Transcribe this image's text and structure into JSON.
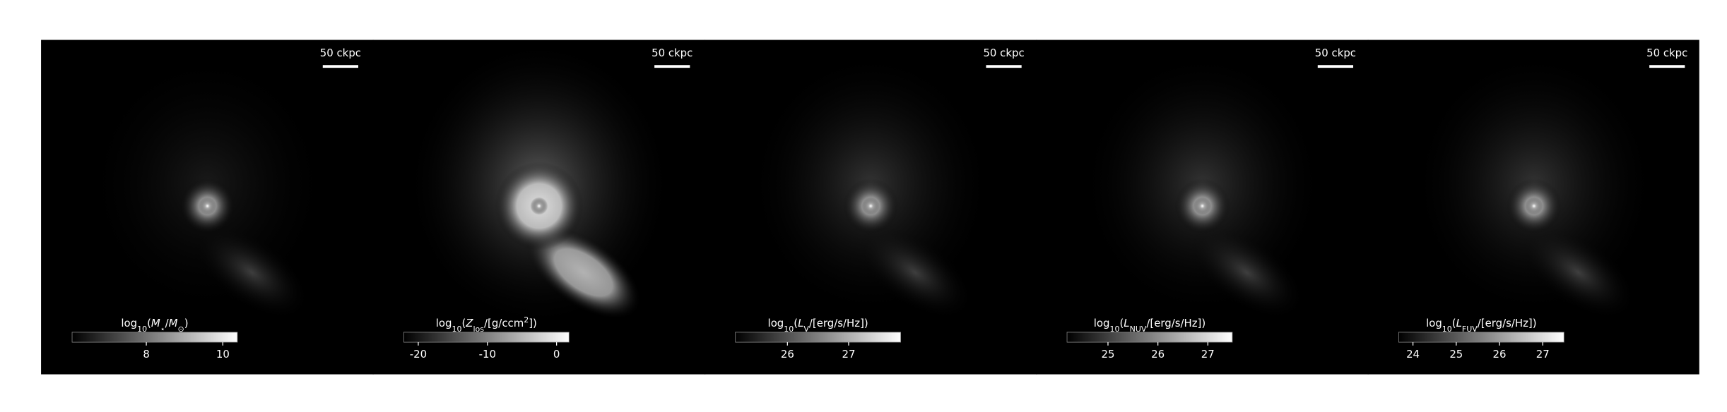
{
  "panels": [
    {
      "scale_bar": "50 ckpc",
      "colorbar": {
        "label": [
          {
            "text": "log"
          },
          {
            "text": "10",
            "style": "sub"
          },
          {
            "text": "("
          },
          {
            "text": "M",
            "style": "italic"
          },
          {
            "text": "⋆",
            "style": "sub"
          },
          {
            "text": "/"
          },
          {
            "text": "M",
            "style": "italic"
          },
          {
            "text": "⊙",
            "style": "sub"
          },
          {
            "text": ")"
          }
        ],
        "lim": [
          6.06,
          10.38
        ],
        "ticks": [
          8,
          10
        ]
      }
    },
    {
      "scale_bar": "50 ckpc",
      "colorbar": {
        "label": [
          {
            "text": "log"
          },
          {
            "text": "10",
            "style": "sub"
          },
          {
            "text": "("
          },
          {
            "text": "Z",
            "style": "italic"
          },
          {
            "text": "los",
            "style": "sub"
          },
          {
            "text": "/[g/ccm"
          },
          {
            "text": "2",
            "style": "sup"
          },
          {
            "text": "])"
          }
        ],
        "lim": [
          -22.1,
          1.8
        ],
        "ticks": [
          -20,
          -10,
          0
        ]
      }
    },
    {
      "scale_bar": "50 ckpc",
      "colorbar": {
        "label": [
          {
            "text": "log"
          },
          {
            "text": "10",
            "style": "sub"
          },
          {
            "text": "("
          },
          {
            "text": "L",
            "style": "italic"
          },
          {
            "text": "V",
            "style": "sub"
          },
          {
            "text": "/[erg/s/Hz])"
          }
        ],
        "lim": [
          25.15,
          27.85
        ],
        "ticks": [
          26,
          27
        ]
      }
    },
    {
      "scale_bar": "50 ckpc",
      "colorbar": {
        "label": [
          {
            "text": "log"
          },
          {
            "text": "10",
            "style": "sub"
          },
          {
            "text": "("
          },
          {
            "text": "L",
            "style": "italic"
          },
          {
            "text": "NUV",
            "style": "sub"
          },
          {
            "text": "/[erg/s/Hz])"
          }
        ],
        "lim": [
          24.18,
          27.49
        ],
        "ticks": [
          25,
          26,
          27
        ]
      }
    },
    {
      "scale_bar": "50 ckpc",
      "colorbar": {
        "label": [
          {
            "text": "log"
          },
          {
            "text": "10",
            "style": "sub"
          },
          {
            "text": "("
          },
          {
            "text": "L",
            "style": "italic"
          },
          {
            "text": "FUV",
            "style": "sub"
          },
          {
            "text": "/[erg/s/Hz])"
          }
        ],
        "lim": [
          23.67,
          27.49
        ],
        "ticks": [
          24,
          25,
          26,
          27
        ]
      }
    }
  ]
}
